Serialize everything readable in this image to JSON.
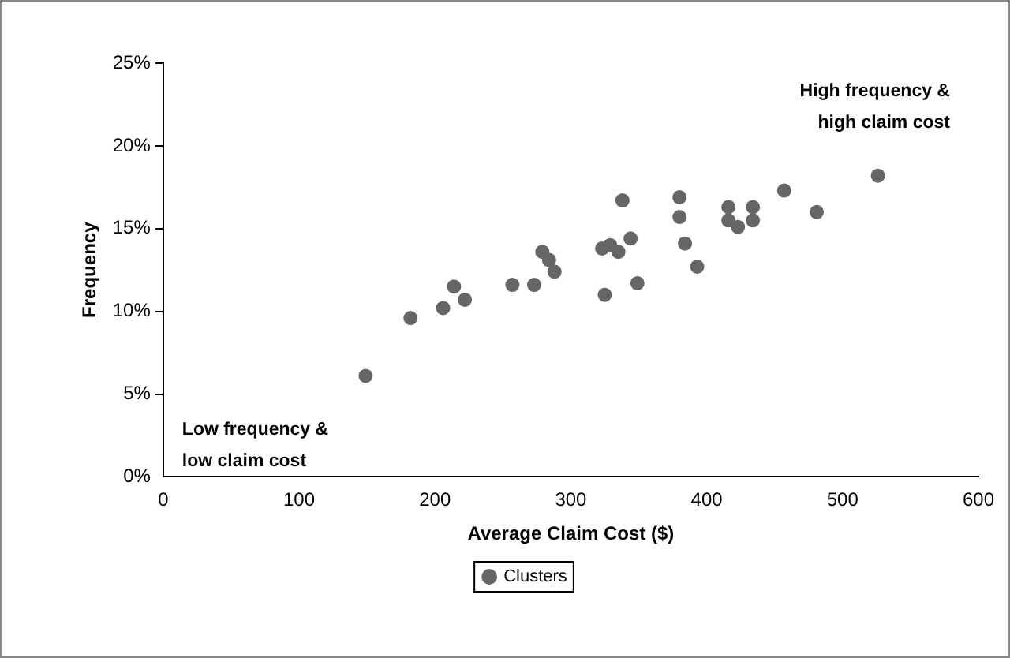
{
  "chart_data": {
    "type": "scatter",
    "xlabel": "Average Claim Cost ($)",
    "ylabel": "Frequency",
    "annotations": [
      "High frequency &\nhigh claim cost",
      "Low frequency &\nlow claim cost"
    ],
    "series": [
      {
        "name": "Clusters",
        "color": "#666666",
        "x": [
          149,
          182,
          206,
          214,
          222,
          257,
          273,
          279,
          284,
          288,
          323,
          329,
          335,
          338,
          344,
          325,
          349,
          380,
          380,
          384,
          393,
          416,
          416,
          423,
          434,
          434,
          457,
          481,
          526
        ],
        "values": [
          6.1,
          9.6,
          10.2,
          11.5,
          10.7,
          11.6,
          11.6,
          13.6,
          13.1,
          12.4,
          13.8,
          14.0,
          13.6,
          16.7,
          14.4,
          11.0,
          11.7,
          16.9,
          15.7,
          14.1,
          12.7,
          16.3,
          15.5,
          15.1,
          16.3,
          15.5,
          17.3,
          16.0,
          18.2
        ]
      }
    ],
    "xlim": [
      0,
      600
    ],
    "xticks": [
      0,
      100,
      200,
      300,
      400,
      500,
      600
    ],
    "ylim": [
      0,
      25
    ],
    "yticks": [
      {
        "value": 0,
        "label": "0%"
      },
      {
        "value": 5,
        "label": "5%"
      },
      {
        "value": 10,
        "label": "10%"
      },
      {
        "value": 15,
        "label": "15%"
      },
      {
        "value": 20,
        "label": "20%"
      },
      {
        "value": 25,
        "label": "25%"
      }
    ],
    "grid": false,
    "legend": "bottom",
    "marker": "circle"
  }
}
